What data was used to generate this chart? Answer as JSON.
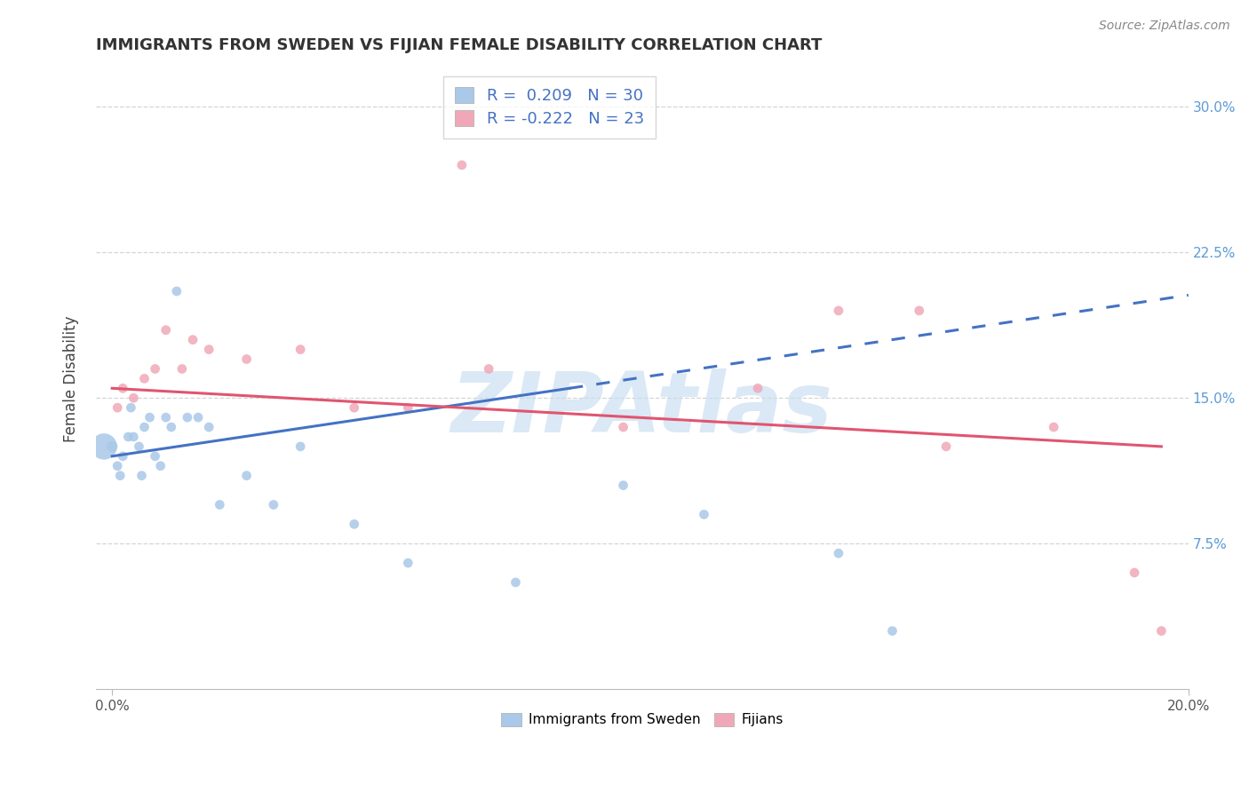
{
  "title": "IMMIGRANTS FROM SWEDEN VS FIJIAN FEMALE DISABILITY CORRELATION CHART",
  "source": "Source: ZipAtlas.com",
  "ylabel": "Female Disability",
  "R1": 0.209,
  "N1": 30,
  "R2": -0.222,
  "N2": 23,
  "legend_label1": "Immigrants from Sweden",
  "legend_label2": "Fijians",
  "blue_color": "#aac8e8",
  "pink_color": "#f0a8b8",
  "blue_line_color": "#4472c4",
  "pink_line_color": "#e05570",
  "watermark": "ZIPAtlas",
  "watermark_color": "#c8ddf0",
  "xlim": [
    -0.3,
    20.0
  ],
  "ylim": [
    0.0,
    32.0
  ],
  "yticks": [
    7.5,
    15.0,
    22.5,
    30.0
  ],
  "xticks": [
    0.0,
    20.0
  ],
  "blue_x": [
    0.0,
    0.1,
    0.15,
    0.2,
    0.3,
    0.35,
    0.4,
    0.5,
    0.55,
    0.6,
    0.7,
    0.8,
    0.9,
    1.0,
    1.1,
    1.2,
    1.4,
    1.6,
    1.8,
    2.0,
    2.5,
    3.0,
    3.5,
    4.5,
    5.5,
    7.5,
    9.5,
    11.0,
    13.5,
    14.5
  ],
  "blue_y": [
    12.5,
    11.5,
    11.0,
    12.0,
    13.0,
    14.5,
    13.0,
    12.5,
    11.0,
    13.5,
    14.0,
    12.0,
    11.5,
    14.0,
    13.5,
    20.5,
    14.0,
    14.0,
    13.5,
    9.5,
    11.0,
    9.5,
    12.5,
    8.5,
    6.5,
    5.5,
    10.5,
    9.0,
    7.0,
    3.0
  ],
  "blue_sizes": [
    80,
    60,
    60,
    60,
    60,
    60,
    60,
    60,
    60,
    60,
    60,
    60,
    60,
    60,
    60,
    60,
    60,
    60,
    60,
    60,
    60,
    60,
    60,
    60,
    60,
    60,
    60,
    60,
    60,
    60
  ],
  "blue_large_x": -0.15,
  "blue_large_y": 12.5,
  "blue_large_size": 450,
  "pink_x": [
    0.1,
    0.2,
    0.4,
    0.6,
    0.8,
    1.0,
    1.3,
    1.5,
    1.8,
    2.5,
    3.5,
    4.5,
    5.5,
    6.5,
    7.0,
    9.5,
    12.0,
    13.5,
    15.0,
    15.5,
    17.5,
    19.0,
    19.5
  ],
  "pink_y": [
    14.5,
    15.5,
    15.0,
    16.0,
    16.5,
    18.5,
    16.5,
    18.0,
    17.5,
    17.0,
    17.5,
    14.5,
    14.5,
    27.0,
    16.5,
    13.5,
    15.5,
    19.5,
    19.5,
    12.5,
    13.5,
    6.0,
    3.0
  ],
  "pink_sizes": [
    60,
    60,
    60,
    60,
    60,
    60,
    60,
    60,
    60,
    60,
    60,
    60,
    60,
    60,
    60,
    60,
    60,
    60,
    60,
    60,
    60,
    60,
    60
  ],
  "blue_line_x0": 0.0,
  "blue_line_y0": 12.0,
  "blue_line_x1": 8.5,
  "blue_line_y1": 15.5,
  "blue_dash_x0": 8.5,
  "blue_dash_y0": 15.5,
  "blue_dash_x1": 20.0,
  "blue_dash_y1": 20.3,
  "pink_line_x0": 0.0,
  "pink_line_y0": 15.5,
  "pink_line_x1": 19.5,
  "pink_line_y1": 12.5
}
